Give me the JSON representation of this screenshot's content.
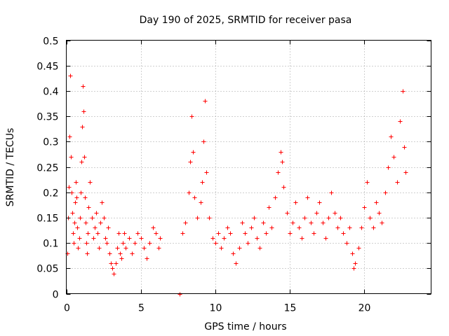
{
  "chart_data": {
    "type": "scatter",
    "title": "Day 190 of 2025, SRMTID for receiver pasa",
    "xlabel": "GPS time / hours",
    "ylabel": "SRMTID / TECUs",
    "xlim": [
      0,
      24.5
    ],
    "ylim": [
      0,
      0.5
    ],
    "x_ticks": [
      0,
      5,
      10,
      15,
      20
    ],
    "x_tick_labels": [
      "0",
      "5",
      "10",
      "15",
      "20"
    ],
    "y_ticks": [
      0,
      0.05,
      0.1,
      0.15,
      0.2,
      0.25,
      0.3,
      0.35,
      0.4,
      0.45,
      0.5
    ],
    "y_tick_labels": [
      "0",
      "0.05",
      "0.1",
      "0.15",
      "0.2",
      "0.25",
      "0.3",
      "0.35",
      "0.4",
      "0.45",
      "0.5"
    ],
    "grid": true,
    "marker": "+",
    "color": "#ff0000",
    "series": [
      {
        "name": "SRMTID",
        "points": [
          [
            0.05,
            0.08
          ],
          [
            0.1,
            0.15
          ],
          [
            0.15,
            0.21
          ],
          [
            0.2,
            0.31
          ],
          [
            0.25,
            0.43
          ],
          [
            0.3,
            0.27
          ],
          [
            0.35,
            0.2
          ],
          [
            0.4,
            0.16
          ],
          [
            0.45,
            0.12
          ],
          [
            0.5,
            0.1
          ],
          [
            0.55,
            0.14
          ],
          [
            0.6,
            0.18
          ],
          [
            0.65,
            0.22
          ],
          [
            0.7,
            0.19
          ],
          [
            0.75,
            0.13
          ],
          [
            0.8,
            0.09
          ],
          [
            0.85,
            0.11
          ],
          [
            0.9,
            0.15
          ],
          [
            0.95,
            0.2
          ],
          [
            1.0,
            0.26
          ],
          [
            1.05,
            0.33
          ],
          [
            1.1,
            0.41
          ],
          [
            1.15,
            0.36
          ],
          [
            1.2,
            0.27
          ],
          [
            1.25,
            0.19
          ],
          [
            1.3,
            0.14
          ],
          [
            1.35,
            0.1
          ],
          [
            1.4,
            0.08
          ],
          [
            1.45,
            0.12
          ],
          [
            1.5,
            0.17
          ],
          [
            1.6,
            0.22
          ],
          [
            1.7,
            0.15
          ],
          [
            1.8,
            0.11
          ],
          [
            1.9,
            0.13
          ],
          [
            2.0,
            0.16
          ],
          [
            2.1,
            0.12
          ],
          [
            2.2,
            0.09
          ],
          [
            2.3,
            0.14
          ],
          [
            2.4,
            0.18
          ],
          [
            2.5,
            0.15
          ],
          [
            2.6,
            0.11
          ],
          [
            2.7,
            0.1
          ],
          [
            2.8,
            0.13
          ],
          [
            2.9,
            0.08
          ],
          [
            3.0,
            0.06
          ],
          [
            3.1,
            0.05
          ],
          [
            3.2,
            0.04
          ],
          [
            3.3,
            0.06
          ],
          [
            3.4,
            0.09
          ],
          [
            3.5,
            0.12
          ],
          [
            3.6,
            0.08
          ],
          [
            3.7,
            0.07
          ],
          [
            3.8,
            0.1
          ],
          [
            3.9,
            0.12
          ],
          [
            4.0,
            0.09
          ],
          [
            4.2,
            0.11
          ],
          [
            4.4,
            0.08
          ],
          [
            4.6,
            0.1
          ],
          [
            4.8,
            0.12
          ],
          [
            5.0,
            0.11
          ],
          [
            5.2,
            0.09
          ],
          [
            5.4,
            0.07
          ],
          [
            5.6,
            0.1
          ],
          [
            5.8,
            0.13
          ],
          [
            6.0,
            0.12
          ],
          [
            6.2,
            0.09
          ],
          [
            6.3,
            0.11
          ],
          [
            7.6,
            0.0
          ],
          [
            7.8,
            0.12
          ],
          [
            8.0,
            0.14
          ],
          [
            8.2,
            0.2
          ],
          [
            8.3,
            0.26
          ],
          [
            8.4,
            0.35
          ],
          [
            8.5,
            0.28
          ],
          [
            8.6,
            0.19
          ],
          [
            8.8,
            0.15
          ],
          [
            9.0,
            0.18
          ],
          [
            9.1,
            0.22
          ],
          [
            9.2,
            0.3
          ],
          [
            9.3,
            0.38
          ],
          [
            9.4,
            0.24
          ],
          [
            9.6,
            0.15
          ],
          [
            9.8,
            0.11
          ],
          [
            10.0,
            0.1
          ],
          [
            10.2,
            0.12
          ],
          [
            10.4,
            0.09
          ],
          [
            10.6,
            0.11
          ],
          [
            10.8,
            0.13
          ],
          [
            11.0,
            0.12
          ],
          [
            11.2,
            0.08
          ],
          [
            11.4,
            0.06
          ],
          [
            11.6,
            0.09
          ],
          [
            11.8,
            0.14
          ],
          [
            12.0,
            0.12
          ],
          [
            12.2,
            0.1
          ],
          [
            12.4,
            0.13
          ],
          [
            12.6,
            0.15
          ],
          [
            12.8,
            0.11
          ],
          [
            13.0,
            0.09
          ],
          [
            13.2,
            0.14
          ],
          [
            13.4,
            0.12
          ],
          [
            13.6,
            0.17
          ],
          [
            13.8,
            0.13
          ],
          [
            14.0,
            0.19
          ],
          [
            14.2,
            0.24
          ],
          [
            14.4,
            0.28
          ],
          [
            14.5,
            0.26
          ],
          [
            14.6,
            0.21
          ],
          [
            14.8,
            0.16
          ],
          [
            15.0,
            0.12
          ],
          [
            15.2,
            0.14
          ],
          [
            15.4,
            0.18
          ],
          [
            15.6,
            0.13
          ],
          [
            15.8,
            0.11
          ],
          [
            16.0,
            0.15
          ],
          [
            16.2,
            0.19
          ],
          [
            16.4,
            0.14
          ],
          [
            16.6,
            0.12
          ],
          [
            16.8,
            0.16
          ],
          [
            17.0,
            0.18
          ],
          [
            17.2,
            0.14
          ],
          [
            17.4,
            0.11
          ],
          [
            17.6,
            0.15
          ],
          [
            17.8,
            0.2
          ],
          [
            18.0,
            0.16
          ],
          [
            18.2,
            0.13
          ],
          [
            18.4,
            0.15
          ],
          [
            18.6,
            0.12
          ],
          [
            18.8,
            0.1
          ],
          [
            19.0,
            0.13
          ],
          [
            19.2,
            0.08
          ],
          [
            19.3,
            0.05
          ],
          [
            19.4,
            0.06
          ],
          [
            19.6,
            0.09
          ],
          [
            19.8,
            0.13
          ],
          [
            20.0,
            0.17
          ],
          [
            20.2,
            0.22
          ],
          [
            20.4,
            0.15
          ],
          [
            20.6,
            0.13
          ],
          [
            20.8,
            0.18
          ],
          [
            21.0,
            0.16
          ],
          [
            21.2,
            0.14
          ],
          [
            21.4,
            0.2
          ],
          [
            21.6,
            0.25
          ],
          [
            21.8,
            0.31
          ],
          [
            22.0,
            0.27
          ],
          [
            22.2,
            0.22
          ],
          [
            22.4,
            0.34
          ],
          [
            22.6,
            0.4
          ],
          [
            22.7,
            0.29
          ],
          [
            22.8,
            0.24
          ]
        ]
      }
    ]
  }
}
